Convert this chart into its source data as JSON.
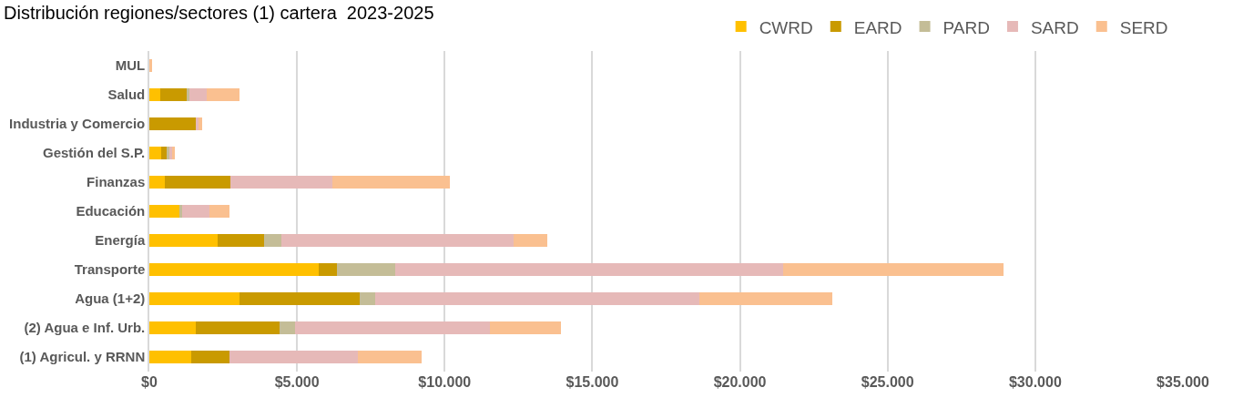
{
  "chart_data": {
    "type": "bar",
    "orientation": "horizontal",
    "stacked": true,
    "title": "Distribución regiones/sectores (1) cartera  2023-2025",
    "categories": [
      "MUL",
      "Salud",
      "Industria y Comercio",
      "Gestión del S.P.",
      "Finanzas",
      "Educación",
      "Energía",
      "Transporte",
      "Agua (1+2)",
      "(2) Agua e Inf. Urb.",
      "(1) Agricul. y RRNN"
    ],
    "series": [
      {
        "name": "CWRD",
        "color": "#ffc000",
        "values": [
          0,
          380,
          0,
          400,
          530,
          1020,
          2310,
          5750,
          3050,
          1560,
          1430
        ]
      },
      {
        "name": "EARD",
        "color": "#c99a00",
        "values": [
          0,
          890,
          1580,
          180,
          2200,
          0,
          1590,
          590,
          4070,
          2850,
          1270
        ]
      },
      {
        "name": "PARD",
        "color": "#c4bd97",
        "values": [
          0,
          90,
          0,
          100,
          0,
          80,
          560,
          1990,
          530,
          530,
          0
        ]
      },
      {
        "name": "SARD",
        "color": "#e6b9b8",
        "values": [
          0,
          590,
          90,
          80,
          3460,
          920,
          7870,
          13130,
          10980,
          6590,
          4370
        ]
      },
      {
        "name": "SERD",
        "color": "#fac090",
        "values": [
          80,
          1090,
          120,
          110,
          4000,
          680,
          1150,
          7480,
          4490,
          2410,
          2150
        ]
      }
    ],
    "xlim": [
      0,
      35000
    ],
    "xticks": [
      {
        "value": 0,
        "label": "$0"
      },
      {
        "value": 5000,
        "label": "$5.000"
      },
      {
        "value": 10000,
        "label": "$10.000"
      },
      {
        "value": 15000,
        "label": "$15.000"
      },
      {
        "value": 20000,
        "label": "$20.000"
      },
      {
        "value": 25000,
        "label": "$25.000"
      },
      {
        "value": 30000,
        "label": "$30.000"
      },
      {
        "value": 35000,
        "label": "$35.000"
      }
    ],
    "grid": "x",
    "legend": "top right"
  }
}
